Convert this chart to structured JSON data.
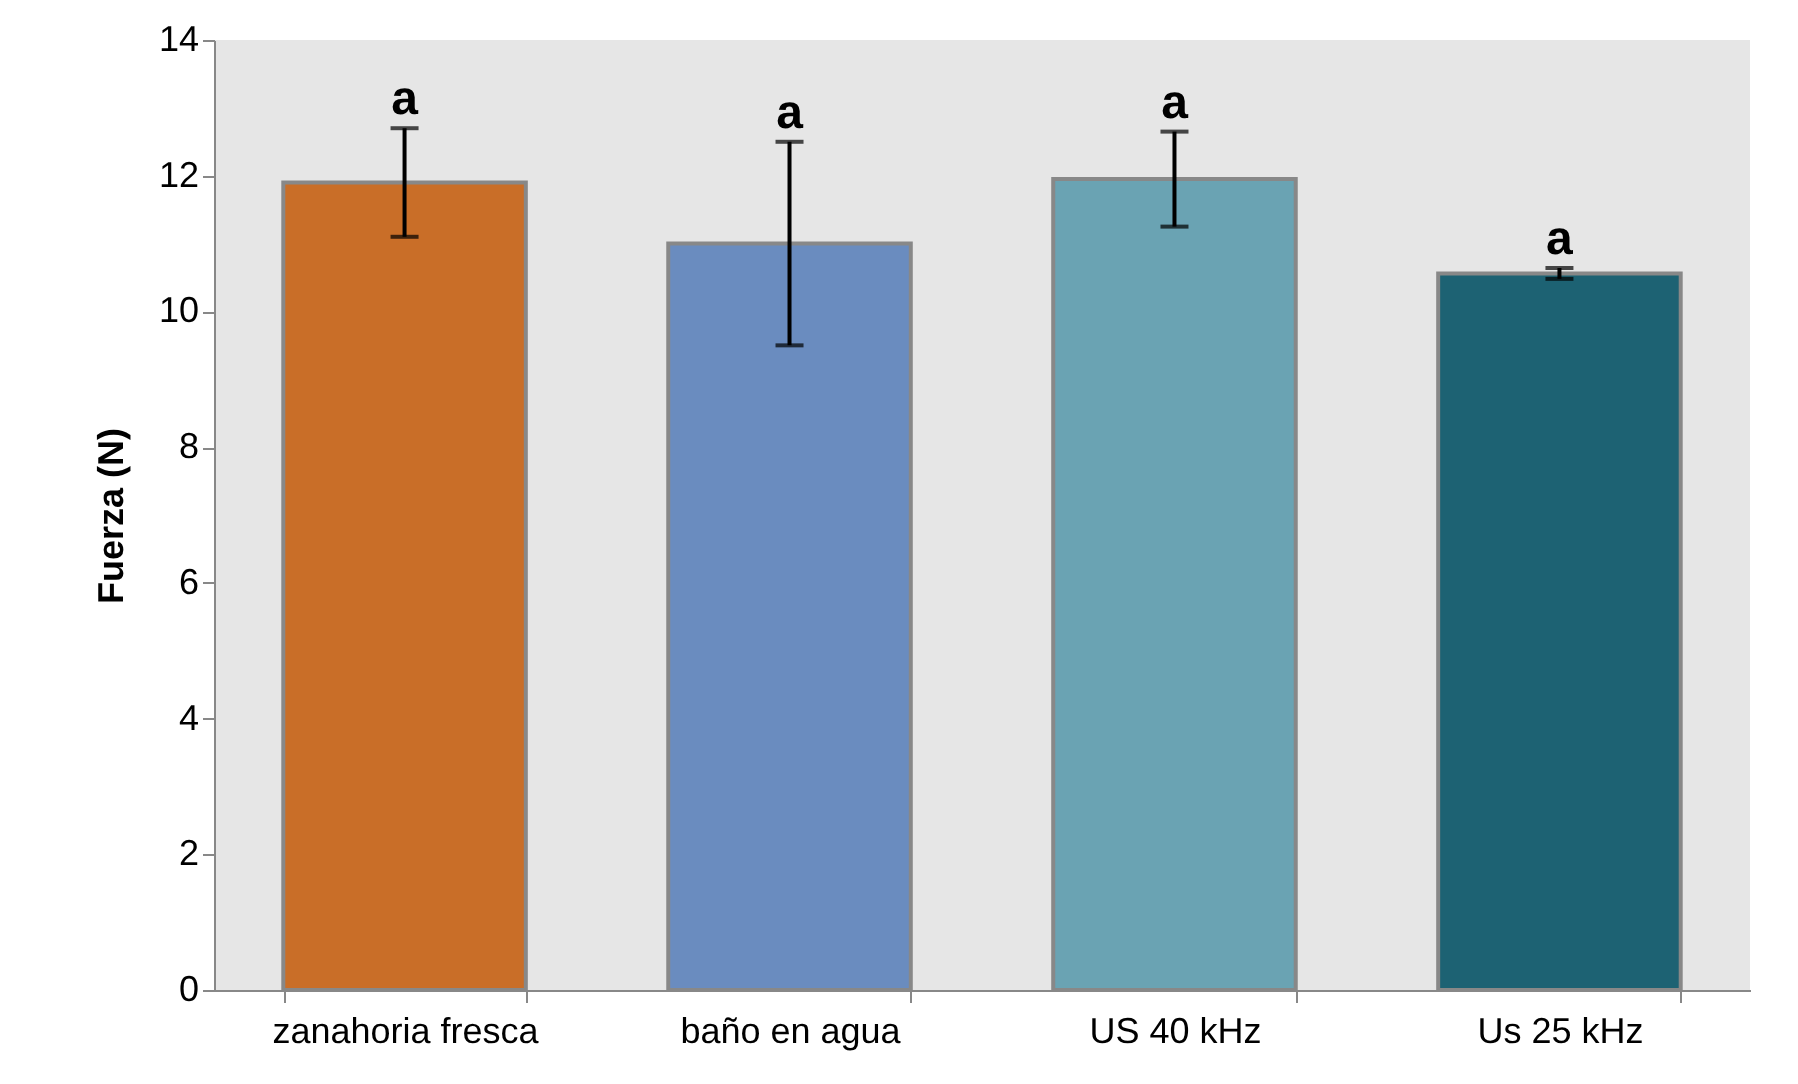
{
  "chart_data": {
    "type": "bar",
    "ylabel": "Fuerza (N)",
    "categories": [
      "zanahoria fresca",
      "baño en agua",
      "US 40 kHz",
      "Us 25 kHz"
    ],
    "values": [
      11.9,
      11.0,
      11.95,
      10.56
    ],
    "colors": [
      "#c96e28",
      "#6a8cbf",
      "#6aa3b3",
      "#1d6273"
    ],
    "errors": [
      0.8,
      1.5,
      0.7,
      0.08
    ],
    "ylim": [
      0,
      14
    ],
    "yticks": [
      0,
      2,
      4,
      6,
      8,
      10,
      12,
      14
    ],
    "annotations": [
      {
        "text": "a",
        "x": "zanahoria fresca",
        "y": 12.7
      },
      {
        "text": "a",
        "x": "baño en agua",
        "y": 12.5
      },
      {
        "text": "a",
        "x": "US 40 kHz",
        "y": 12.65
      },
      {
        "text": "a",
        "x": "Us 25 kHz",
        "y": 10.64
      }
    ]
  }
}
